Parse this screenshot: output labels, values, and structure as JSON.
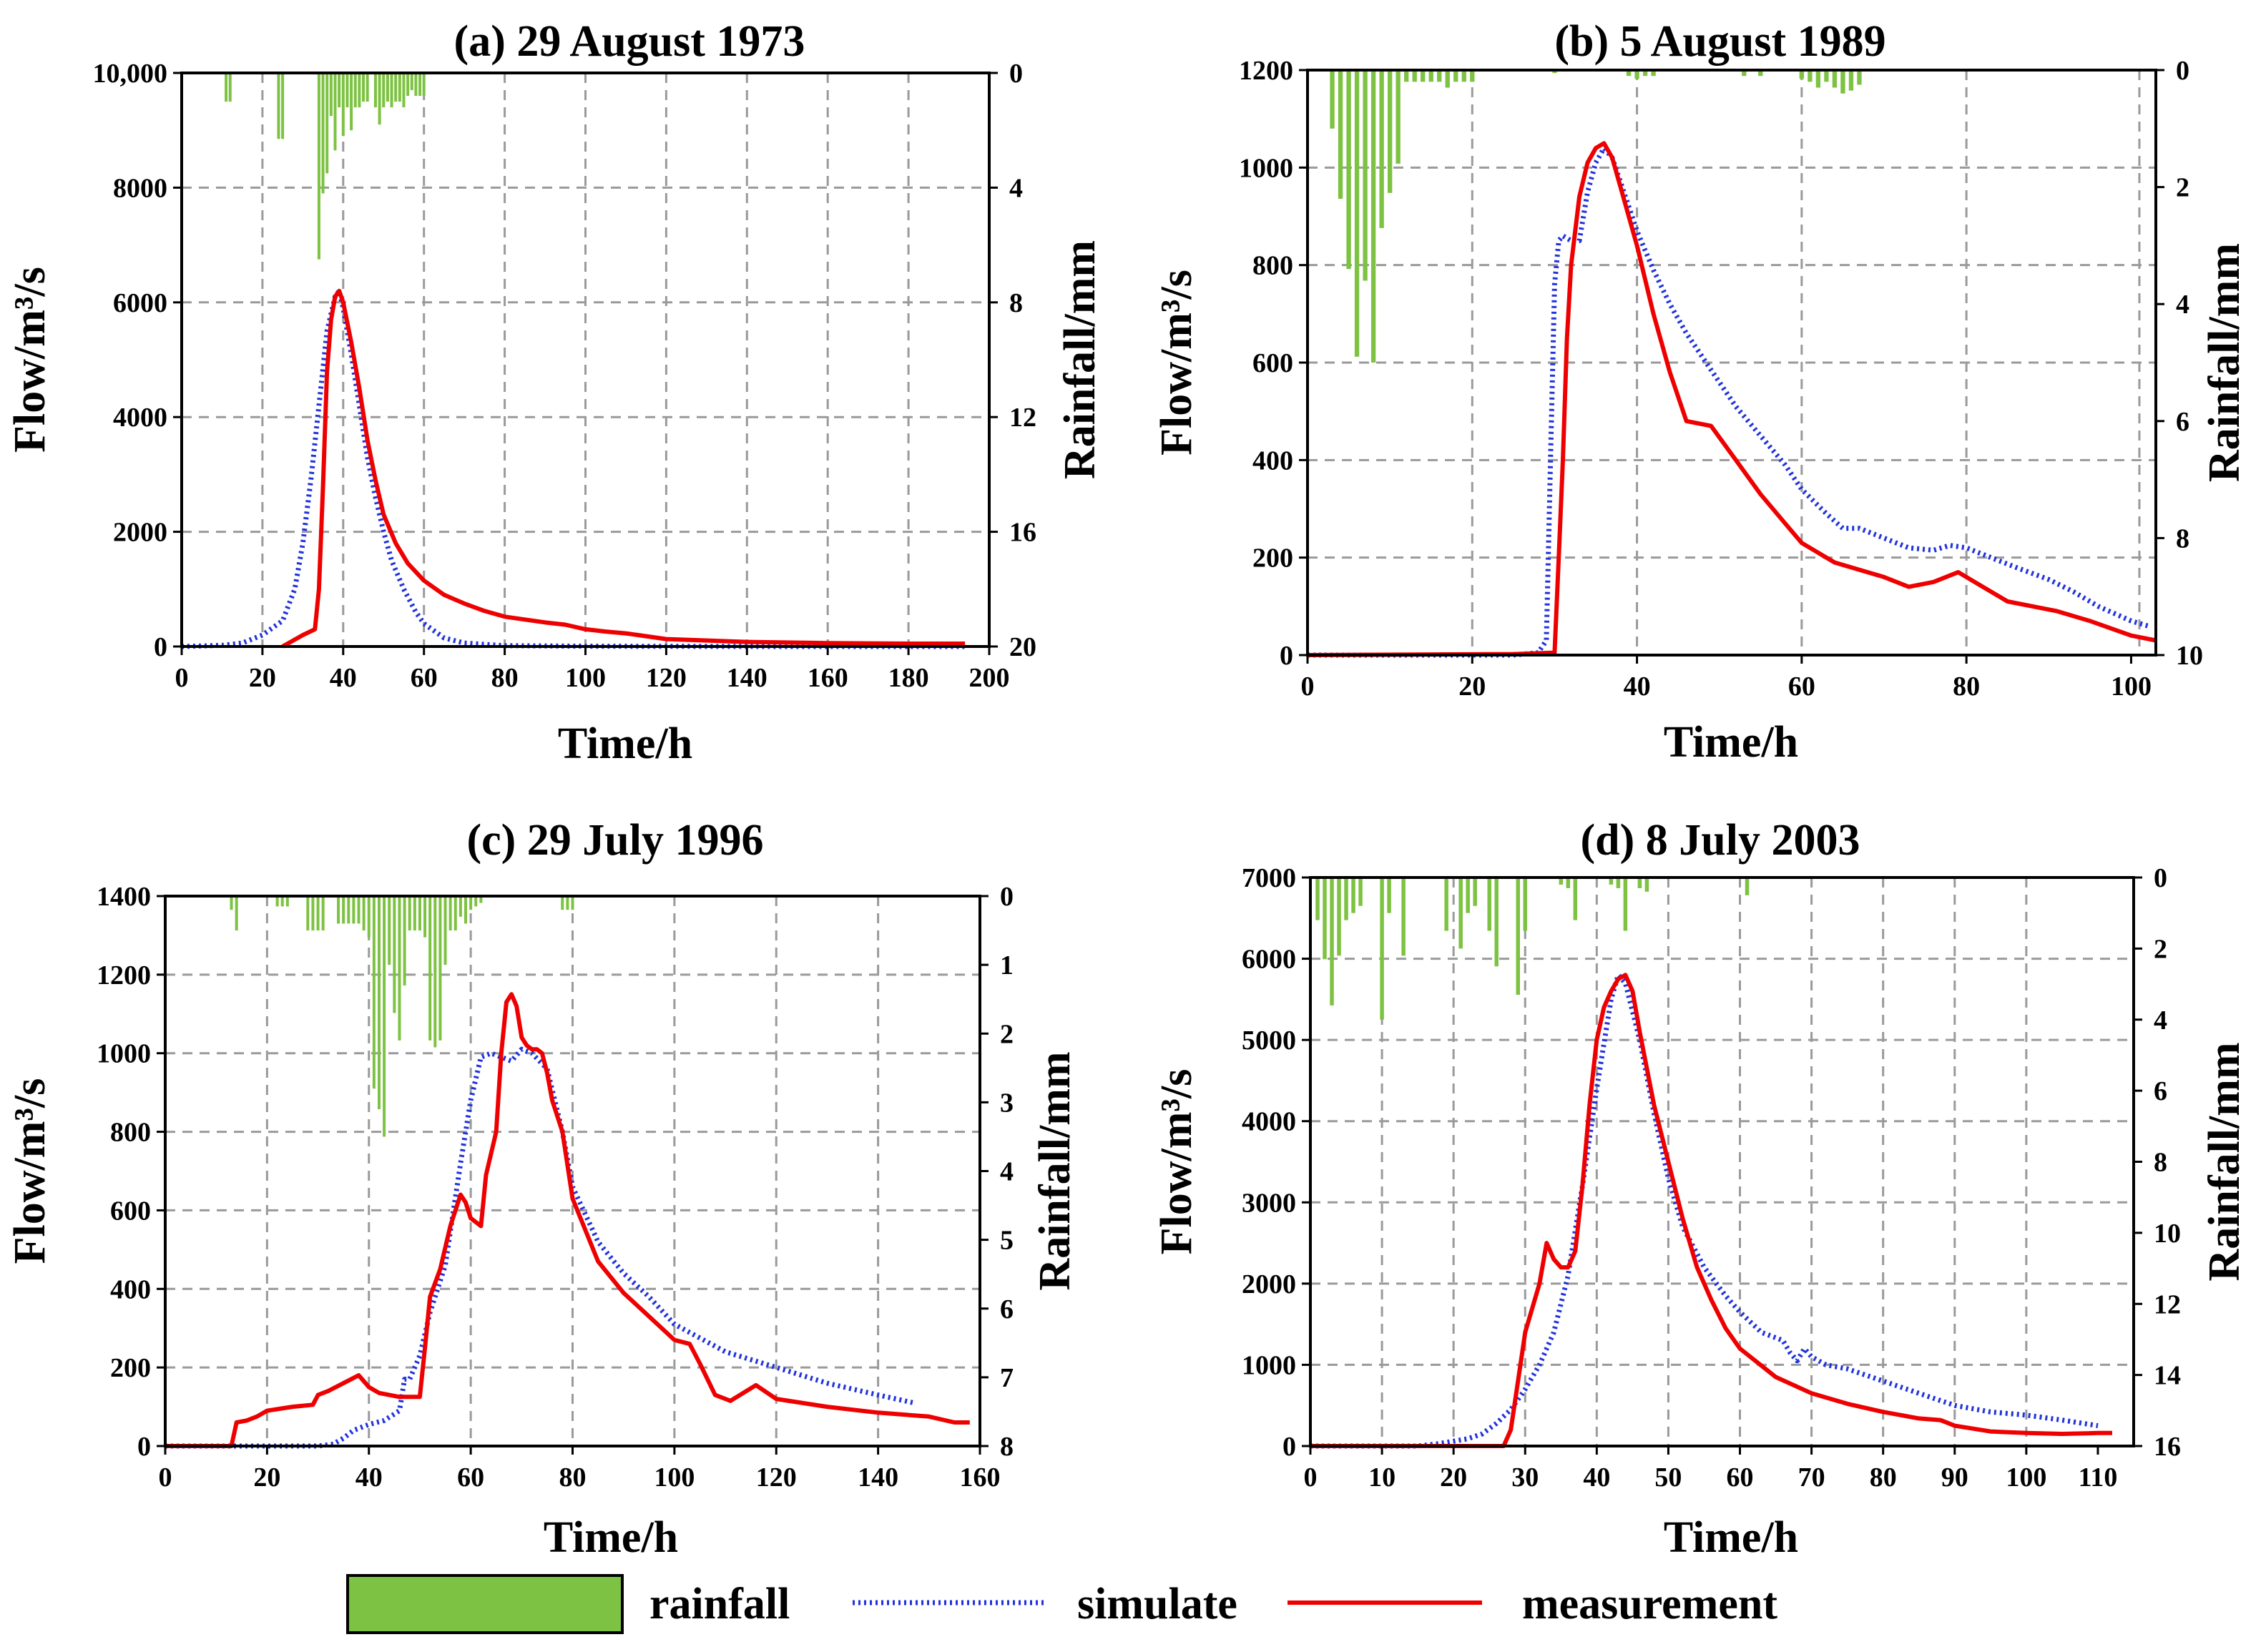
{
  "colors": {
    "rainfall": "#7dc242",
    "simulate": "#2233dd",
    "measurement": "#ee0000",
    "grid": "#9a9a9a",
    "axis": "#000000"
  },
  "legend": {
    "rainfall": "rainfall",
    "simulate": "simulate",
    "measurement": "measurement"
  },
  "chart_data": [
    {
      "type": "line",
      "title": "(a) 29 August 1973",
      "xlabel": "Time/h",
      "ylabel": "Flow/m³/s",
      "y2label": "Rainfall/mm",
      "xlim": [
        0,
        200
      ],
      "ylim": [
        0,
        10000
      ],
      "y2lim": [
        0,
        20
      ],
      "xticks": [
        0,
        20,
        40,
        60,
        80,
        100,
        120,
        140,
        160,
        180,
        200
      ],
      "yticks": [
        0,
        2000,
        4000,
        6000,
        8000,
        10000
      ],
      "ytick_labels": [
        "0",
        "2000",
        "4000",
        "6000",
        "8000",
        "10,000"
      ],
      "y2ticks": [
        0,
        4,
        8,
        12,
        16,
        20
      ],
      "grid": true,
      "series": [
        {
          "name": "simulate",
          "x": [
            0,
            10,
            15,
            20,
            25,
            28,
            30,
            32,
            34,
            36,
            38,
            39,
            40,
            42,
            44,
            46,
            48,
            50,
            52,
            55,
            58,
            60,
            65,
            70,
            80,
            100,
            150,
            194
          ],
          "y": [
            0,
            20,
            60,
            200,
            450,
            1000,
            1800,
            2900,
            4200,
            5500,
            6100,
            6200,
            5900,
            5100,
            4200,
            3300,
            2600,
            2000,
            1500,
            1000,
            600,
            400,
            150,
            60,
            15,
            5,
            0,
            0
          ]
        },
        {
          "name": "measurement",
          "x": [
            25,
            30,
            33,
            34,
            35,
            36,
            37,
            38,
            39,
            40,
            42,
            44,
            46,
            48,
            50,
            53,
            56,
            60,
            65,
            70,
            75,
            80,
            90,
            95,
            100,
            105,
            110,
            120,
            140,
            160,
            180,
            194
          ],
          "y": [
            0,
            200,
            300,
            1000,
            2800,
            4800,
            5700,
            6100,
            6200,
            6000,
            5300,
            4500,
            3600,
            2900,
            2300,
            1800,
            1450,
            1150,
            900,
            750,
            620,
            520,
            420,
            380,
            300,
            260,
            230,
            130,
            80,
            60,
            50,
            50
          ]
        },
        {
          "name": "rainfall",
          "x": [
            11,
            12,
            24,
            25,
            34,
            35,
            36,
            37,
            38,
            39,
            40,
            41,
            42,
            43,
            44,
            45,
            46,
            48,
            49,
            50,
            51,
            52,
            53,
            54,
            55,
            56,
            57,
            58,
            59,
            60
          ],
          "y": [
            1.0,
            1.0,
            2.3,
            2.3,
            6.5,
            4.2,
            3.5,
            1.5,
            2.7,
            1.2,
            2.2,
            1.2,
            2.0,
            1.2,
            1.2,
            1.0,
            1.0,
            1.2,
            1.8,
            1.2,
            1.0,
            1.2,
            1.0,
            1.0,
            1.2,
            0.8,
            0.6,
            0.8,
            0.8,
            0.8
          ]
        }
      ]
    },
    {
      "type": "line",
      "title": "(b) 5 August 1989",
      "xlabel": "Time/h",
      "ylabel": "Flow/m³/s",
      "y2label": "Rainfall/mm",
      "xlim": [
        0,
        103
      ],
      "ylim": [
        0,
        1200
      ],
      "y2lim": [
        0,
        10
      ],
      "xticks": [
        0,
        20,
        40,
        60,
        80,
        100
      ],
      "yticks": [
        0,
        200,
        400,
        600,
        800,
        1000,
        1200
      ],
      "ytick_labels": [
        "0",
        "200",
        "400",
        "600",
        "800",
        "1000",
        "1200"
      ],
      "y2ticks": [
        0,
        2,
        4,
        6,
        8,
        10
      ],
      "xgrid": [
        20,
        40,
        60,
        80,
        101
      ],
      "grid": true,
      "series": [
        {
          "name": "simulate",
          "x": [
            0,
            20,
            25,
            28,
            29,
            29.5,
            30,
            30.5,
            31,
            32,
            33,
            34,
            35,
            36,
            37,
            38,
            40,
            42,
            44,
            46,
            48,
            50,
            52,
            55,
            58,
            60,
            63,
            65,
            67,
            70,
            73,
            76,
            78,
            80,
            83,
            86,
            90,
            93,
            96,
            100,
            102
          ],
          "y": [
            0,
            0,
            0,
            5,
            30,
            400,
            760,
            850,
            860,
            850,
            850,
            950,
            1010,
            1040,
            1020,
            970,
            870,
            790,
            720,
            660,
            610,
            560,
            510,
            450,
            390,
            340,
            290,
            260,
            260,
            240,
            220,
            215,
            225,
            220,
            200,
            180,
            155,
            130,
            100,
            70,
            60
          ]
        },
        {
          "name": "measurement",
          "x": [
            0,
            25,
            30,
            30.5,
            31,
            31.5,
            32,
            33,
            34,
            35,
            36,
            37,
            38,
            40,
            42,
            44,
            46,
            49,
            52,
            55,
            58,
            60,
            64,
            68,
            70,
            73,
            76,
            79,
            81,
            85,
            88,
            91,
            95,
            100,
            103
          ],
          "y": [
            0,
            2,
            5,
            200,
            400,
            650,
            800,
            940,
            1010,
            1040,
            1050,
            1020,
            960,
            840,
            700,
            580,
            480,
            470,
            400,
            330,
            270,
            230,
            190,
            170,
            160,
            140,
            150,
            170,
            150,
            110,
            100,
            90,
            70,
            40,
            30
          ]
        },
        {
          "name": "rainfall",
          "x": [
            3,
            4,
            5,
            6,
            7,
            8,
            9,
            10,
            11,
            12,
            13,
            14,
            15,
            16,
            17,
            18,
            19,
            20,
            30,
            39,
            40,
            41,
            42,
            53,
            55,
            60,
            61,
            62,
            63,
            64,
            65,
            66,
            67
          ],
          "y": [
            1.0,
            2.2,
            3.4,
            4.9,
            3.6,
            5.0,
            2.7,
            2.1,
            1.6,
            0.2,
            0.2,
            0.2,
            0.2,
            0.2,
            0.3,
            0.2,
            0.2,
            0.2,
            0.05,
            0.1,
            0.15,
            0.1,
            0.1,
            0.1,
            0.1,
            0.15,
            0.2,
            0.3,
            0.2,
            0.3,
            0.4,
            0.35,
            0.25
          ]
        }
      ]
    },
    {
      "type": "line",
      "title": "(c) 29 July 1996",
      "xlabel": "Time/h",
      "ylabel": "Flow/m³/s",
      "y2label": "Rainfall/mm",
      "xlim": [
        0,
        160
      ],
      "ylim": [
        0,
        1400
      ],
      "y2lim": [
        0,
        8
      ],
      "xticks": [
        0,
        20,
        40,
        60,
        80,
        100,
        120,
        140,
        160
      ],
      "yticks": [
        0,
        200,
        400,
        600,
        800,
        1000,
        1200,
        1400
      ],
      "ytick_labels": [
        "0",
        "200",
        "400",
        "600",
        "800",
        "1000",
        "1200",
        "1400"
      ],
      "y2ticks": [
        0,
        1,
        2,
        3,
        4,
        5,
        6,
        7,
        8
      ],
      "grid": true,
      "series": [
        {
          "name": "simulate",
          "x": [
            0,
            10,
            20,
            30,
            33,
            35,
            37,
            40,
            43,
            46,
            47,
            48,
            50,
            52,
            55,
            58,
            60,
            62,
            64,
            66,
            68,
            70,
            72,
            75,
            78,
            80,
            85,
            90,
            95,
            100,
            110,
            120,
            130,
            140,
            147
          ],
          "y": [
            0,
            0,
            0,
            0,
            5,
            20,
            40,
            55,
            65,
            90,
            170,
            170,
            230,
            340,
            460,
            720,
            880,
            990,
            1000,
            990,
            980,
            1010,
            1000,
            960,
            800,
            660,
            520,
            440,
            380,
            310,
            240,
            200,
            160,
            130,
            110
          ]
        },
        {
          "name": "measurement",
          "x": [
            0,
            13,
            14,
            16,
            18,
            20,
            25,
            29,
            30,
            32,
            35,
            38,
            40,
            42,
            44,
            46,
            50,
            51,
            52,
            54,
            56,
            58,
            59,
            60,
            62,
            63,
            65,
            66,
            67,
            68,
            69,
            70,
            71,
            72,
            73,
            74,
            75,
            76,
            78,
            80,
            85,
            90,
            95,
            100,
            103,
            105,
            108,
            111,
            116,
            120,
            130,
            140,
            150,
            155,
            158
          ],
          "y": [
            0,
            0,
            60,
            65,
            75,
            90,
            100,
            105,
            130,
            140,
            160,
            180,
            150,
            135,
            130,
            125,
            125,
            250,
            380,
            450,
            560,
            640,
            620,
            580,
            560,
            690,
            800,
            1000,
            1130,
            1150,
            1120,
            1040,
            1020,
            1010,
            1010,
            1000,
            950,
            880,
            800,
            630,
            470,
            390,
            330,
            270,
            260,
            210,
            130,
            115,
            155,
            120,
            100,
            85,
            75,
            60,
            60
          ]
        },
        {
          "name": "rainfall",
          "x": [
            13,
            14,
            22,
            23,
            24,
            28,
            29,
            30,
            31,
            34,
            35,
            36,
            37,
            38,
            39,
            40,
            41,
            42,
            43,
            44,
            45,
            46,
            47,
            48,
            49,
            50,
            51,
            52,
            53,
            54,
            55,
            56,
            57,
            58,
            59,
            60,
            61,
            62,
            78,
            79,
            80
          ],
          "y": [
            0.2,
            0.5,
            0.15,
            0.15,
            0.15,
            0.5,
            0.5,
            0.5,
            0.5,
            0.4,
            0.4,
            0.4,
            0.4,
            0.4,
            0.5,
            0.6,
            2.8,
            3.1,
            3.5,
            1.0,
            1.7,
            2.1,
            1.3,
            0.5,
            0.5,
            0.5,
            0.6,
            2.1,
            2.2,
            2.1,
            1.0,
            0.5,
            0.5,
            0.3,
            0.4,
            0.2,
            0.15,
            0.1,
            0.2,
            0.2,
            0.2
          ]
        }
      ]
    },
    {
      "type": "line",
      "title": "(d) 8 July 2003",
      "xlabel": "Time/h",
      "ylabel": "Flow/m³/s",
      "y2label": "Rainfall/mm",
      "xlim": [
        0,
        115
      ],
      "ylim": [
        0,
        7000
      ],
      "y2lim": [
        0,
        16
      ],
      "xticks": [
        0,
        10,
        20,
        30,
        40,
        50,
        60,
        70,
        80,
        90,
        100,
        110
      ],
      "yticks": [
        0,
        1000,
        2000,
        3000,
        4000,
        5000,
        6000,
        7000
      ],
      "ytick_labels": [
        "0",
        "1000",
        "2000",
        "3000",
        "4000",
        "5000",
        "6000",
        "7000"
      ],
      "y2ticks": [
        0,
        2,
        4,
        6,
        8,
        10,
        12,
        14,
        16
      ],
      "grid": true,
      "series": [
        {
          "name": "simulate",
          "x": [
            0,
            15,
            18,
            20,
            22,
            24,
            26,
            28,
            30,
            32,
            34,
            36,
            38,
            40,
            42,
            43,
            44,
            46,
            48,
            50,
            52,
            55,
            58,
            60,
            63,
            66,
            67,
            68,
            69,
            70,
            72,
            75,
            80,
            85,
            90,
            95,
            100,
            105,
            110
          ],
          "y": [
            0,
            0,
            30,
            60,
            90,
            150,
            280,
            450,
            700,
            1000,
            1400,
            2100,
            3200,
            4400,
            5500,
            5800,
            5700,
            5000,
            4100,
            3300,
            2700,
            2200,
            1850,
            1650,
            1400,
            1300,
            1150,
            1050,
            1200,
            1100,
            1000,
            950,
            800,
            650,
            500,
            420,
            380,
            320,
            250
          ]
        },
        {
          "name": "measurement",
          "x": [
            0,
            27,
            28,
            29,
            30,
            31,
            32,
            33,
            34,
            35,
            36,
            37,
            38,
            39,
            40,
            41,
            42,
            43,
            44,
            45,
            46,
            48,
            50,
            52,
            54,
            56,
            58,
            60,
            65,
            70,
            75,
            80,
            85,
            88,
            90,
            95,
            100,
            105,
            110,
            112
          ],
          "y": [
            0,
            0,
            200,
            800,
            1400,
            1700,
            2000,
            2500,
            2300,
            2200,
            2200,
            2400,
            3200,
            4200,
            5000,
            5400,
            5600,
            5750,
            5800,
            5600,
            5100,
            4200,
            3500,
            2800,
            2200,
            1800,
            1450,
            1200,
            850,
            650,
            520,
            420,
            340,
            320,
            250,
            180,
            160,
            150,
            160,
            160
          ]
        },
        {
          "name": "rainfall",
          "x": [
            1,
            2,
            3,
            4,
            5,
            6,
            7,
            10,
            11,
            13,
            19,
            21,
            22,
            23,
            25,
            26,
            29,
            30,
            35,
            36,
            37,
            42,
            43,
            44,
            46,
            47,
            61
          ],
          "y": [
            1.2,
            2.3,
            3.6,
            2.2,
            1.2,
            1.0,
            0.8,
            4.0,
            1.0,
            2.2,
            1.5,
            2.0,
            1.0,
            0.8,
            1.5,
            2.5,
            3.3,
            1.5,
            0.2,
            0.3,
            1.2,
            0.2,
            0.3,
            1.5,
            0.3,
            0.4,
            0.5
          ]
        }
      ]
    }
  ]
}
